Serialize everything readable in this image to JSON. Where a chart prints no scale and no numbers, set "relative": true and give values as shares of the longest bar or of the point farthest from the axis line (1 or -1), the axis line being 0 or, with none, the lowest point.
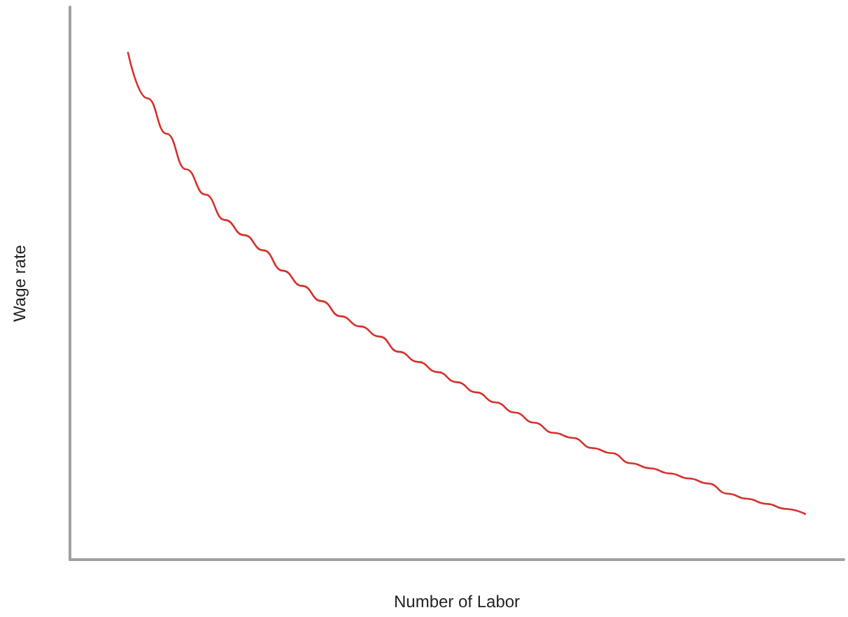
{
  "chart_data": {
    "type": "line",
    "xlabel": "Number of Labor",
    "ylabel": "Wage rate",
    "relative": true,
    "grid": false,
    "marker": "none",
    "line_style": "solid",
    "categories": [
      null,
      null,
      null,
      null,
      null,
      null,
      null,
      null,
      null,
      null,
      null,
      null,
      null,
      null,
      null,
      null,
      null,
      null,
      null,
      null,
      null,
      null,
      null,
      null,
      null,
      null,
      null,
      null,
      null,
      null,
      null,
      null,
      null,
      null,
      null,
      null,
      null,
      null,
      null,
      null,
      null
    ],
    "series": [
      {
        "color": "#d4322c",
        "values": [
          null,
          null,
          null,
          1,
          0.91,
          0.84,
          0.77,
          0.72,
          0.67,
          0.64,
          0.61,
          0.57,
          0.54,
          0.51,
          0.48,
          0.46,
          0.44,
          0.41,
          0.39,
          0.37,
          0.35,
          0.33,
          0.31,
          0.29,
          0.27,
          0.25,
          0.24,
          0.22,
          0.21,
          0.19,
          0.18,
          0.17,
          0.16,
          0.15,
          0.13,
          0.12,
          0.11,
          0.1,
          0.09,
          null,
          null
        ]
      }
    ]
  }
}
